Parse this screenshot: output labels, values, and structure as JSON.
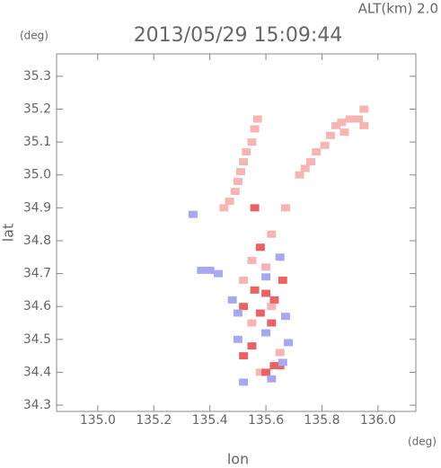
{
  "chart_data": {
    "type": "scatter",
    "title": "2013/05/29 15:09:44",
    "annotation": "ALT(km) 2.0",
    "y_unit": "(deg)",
    "x_unit": "(deg)",
    "x_label": "lon",
    "y_label": "lat",
    "xlim": [
      134.853,
      136.135
    ],
    "ylim": [
      34.281,
      35.368
    ],
    "xticks": [
      {
        "value": 135,
        "label": "135.0"
      },
      135.2,
      135.4,
      135.6,
      135.8,
      {
        "value": 136,
        "label": "136.0"
      }
    ],
    "yticks": [
      34.3,
      34.4,
      34.5,
      34.6,
      34.7,
      34.8,
      34.9,
      {
        "value": 35,
        "label": "35.0"
      },
      35.1,
      35.2,
      35.3
    ],
    "series": [
      {
        "color": "#f6b4b4",
        "x": [
          135.95,
          135.93,
          135.9,
          135.87,
          135.85,
          135.83,
          135.81,
          135.78,
          135.76,
          135.74,
          135.72,
          135.95,
          135.88,
          135.57,
          135.56,
          135.55,
          135.53,
          135.52,
          135.51,
          135.5,
          135.49,
          135.47,
          135.45,
          135.58,
          135.55,
          135.6,
          135.52,
          135.62,
          135.55,
          135.65,
          135.58,
          135.62,
          135.67
        ],
        "y": [
          35.2,
          35.17,
          35.17,
          35.16,
          35.15,
          35.12,
          35.09,
          35.07,
          35.04,
          35.02,
          35.0,
          35.15,
          35.13,
          35.17,
          35.14,
          35.1,
          35.07,
          35.04,
          35.01,
          34.98,
          34.95,
          34.92,
          34.9,
          34.78,
          34.74,
          34.72,
          34.68,
          34.6,
          34.55,
          34.46,
          34.4,
          34.82,
          34.9
        ]
      },
      {
        "color": "#e86464",
        "x": [
          135.56,
          135.6,
          135.63,
          135.52,
          135.58,
          135.62,
          135.55,
          135.52,
          135.63,
          135.6,
          135.65,
          135.58,
          135.56,
          135.66
        ],
        "y": [
          34.65,
          34.64,
          34.62,
          34.6,
          34.58,
          34.55,
          34.48,
          34.45,
          34.42,
          34.4,
          34.42,
          34.78,
          34.9,
          34.68
        ]
      },
      {
        "color": "#a8a8f0",
        "x": [
          135.37,
          135.4,
          135.43,
          135.34,
          135.48,
          135.5,
          135.67,
          135.6,
          135.68,
          135.66,
          135.52,
          135.62,
          135.5,
          135.65,
          135.6
        ],
        "y": [
          34.71,
          34.71,
          34.7,
          34.88,
          34.62,
          34.58,
          34.57,
          34.52,
          34.49,
          34.43,
          34.37,
          34.38,
          34.5,
          34.75,
          34.69
        ]
      }
    ]
  }
}
